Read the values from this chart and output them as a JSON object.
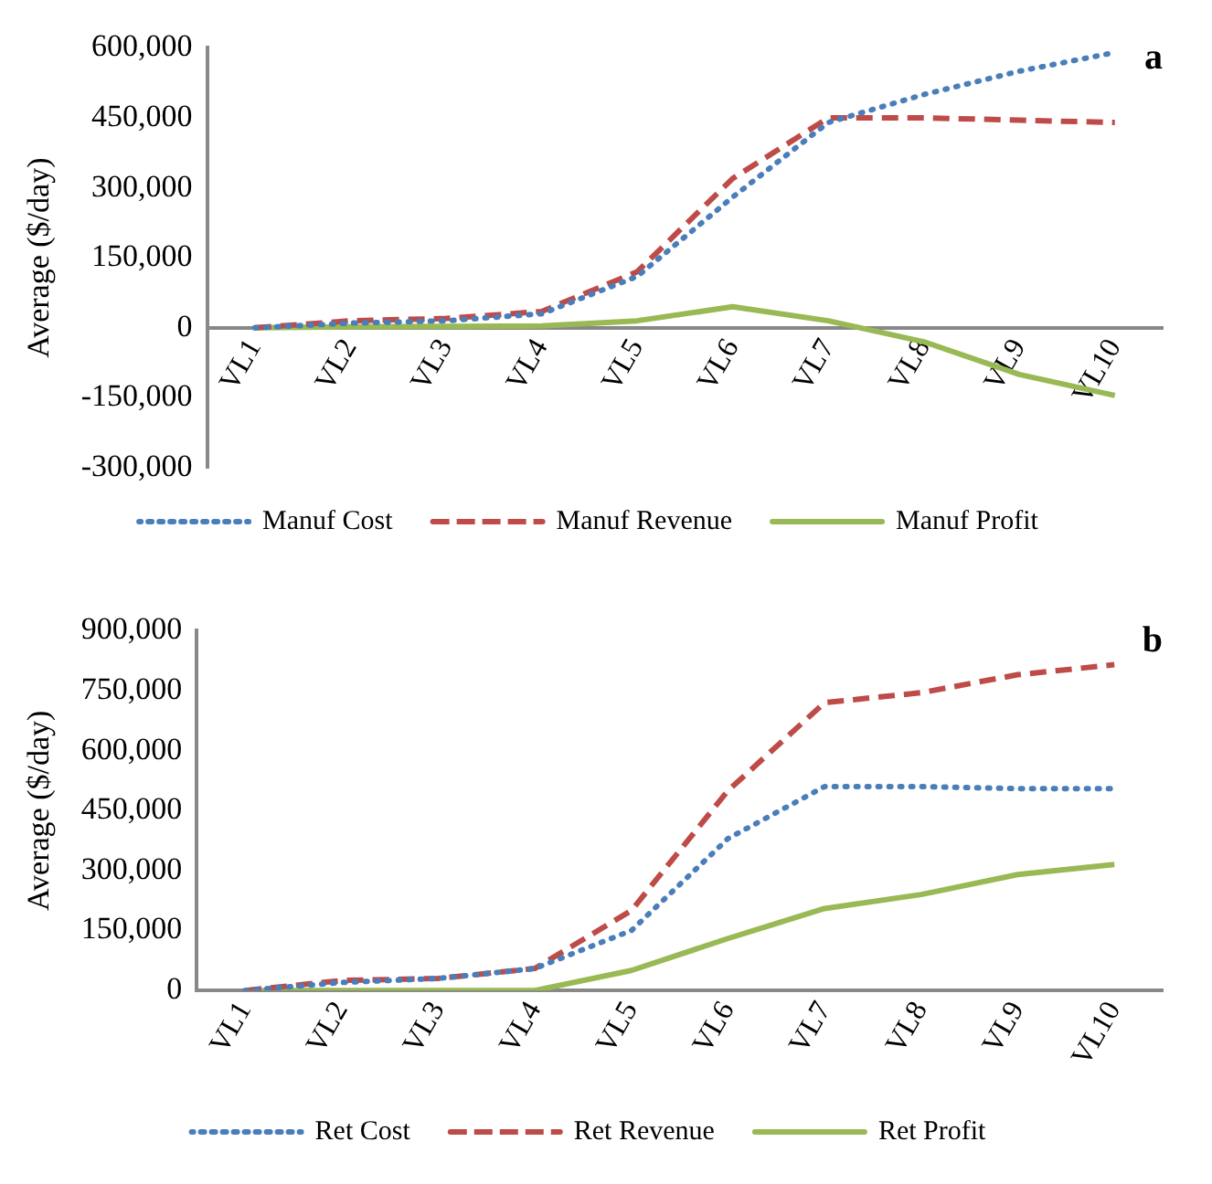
{
  "chart_data": [
    {
      "type": "line",
      "title": "a",
      "ylabel": "Average ($/day)",
      "categories": [
        "VL1",
        "VL2",
        "VL3",
        "VL4",
        "VL5",
        "VL6",
        "VL7",
        "VL8",
        "VL9",
        "VL10"
      ],
      "ylim": [
        -300000,
        600000
      ],
      "yticks": [
        {
          "value": -300000,
          "label": "-300,000"
        },
        {
          "value": -150000,
          "label": "-150,000"
        },
        0,
        {
          "value": 150000,
          "label": "150,000"
        },
        {
          "value": 300000,
          "label": "300,000"
        },
        {
          "value": 450000,
          "label": "450,000"
        },
        {
          "value": 600000,
          "label": "600,000"
        }
      ],
      "grid": false,
      "legend": "bottom",
      "marker": "none",
      "series": [
        {
          "name": "Manuf Cost",
          "color": "#4a7ebb",
          "line_style": "dotted",
          "values": [
            0,
            10000,
            15000,
            30000,
            110000,
            280000,
            440000,
            500000,
            550000,
            590000
          ]
        },
        {
          "name": "Manuf Revenue",
          "color": "#be4b48",
          "line_style": "dashed",
          "values": [
            0,
            15000,
            20000,
            35000,
            120000,
            320000,
            450000,
            450000,
            445000,
            440000
          ]
        },
        {
          "name": "Manuf Profit",
          "color": "#98b954",
          "line_style": "solid",
          "values": [
            0,
            2000,
            3000,
            4000,
            15000,
            45000,
            15000,
            -30000,
            -100000,
            -145000
          ]
        }
      ]
    },
    {
      "type": "line",
      "title": "b",
      "ylabel": "Average ($/day)",
      "categories": [
        "VL1",
        "VL2",
        "VL3",
        "VL4",
        "VL5",
        "VL6",
        "VL7",
        "VL8",
        "VL9",
        "VL10"
      ],
      "ylim": [
        0,
        900000
      ],
      "yticks": [
        0,
        {
          "value": 150000,
          "label": "150,000"
        },
        {
          "value": 300000,
          "label": "300,000"
        },
        {
          "value": 450000,
          "label": "450,000"
        },
        {
          "value": 600000,
          "label": "600,000"
        },
        {
          "value": 750000,
          "label": "750,000"
        },
        {
          "value": 900000,
          "label": "900,000"
        }
      ],
      "grid": false,
      "legend": "bottom",
      "marker": "none",
      "series": [
        {
          "name": "Ret Cost",
          "color": "#4a7ebb",
          "line_style": "dotted",
          "values": [
            0,
            20000,
            30000,
            55000,
            150000,
            380000,
            510000,
            510000,
            505000,
            505000
          ]
        },
        {
          "name": "Ret Revenue",
          "color": "#be4b48",
          "line_style": "dashed",
          "values": [
            0,
            25000,
            30000,
            55000,
            200000,
            500000,
            720000,
            745000,
            790000,
            815000
          ]
        },
        {
          "name": "Ret Profit",
          "color": "#98b954",
          "line_style": "solid",
          "values": [
            0,
            0,
            0,
            0,
            50000,
            130000,
            205000,
            240000,
            290000,
            315000
          ]
        }
      ]
    }
  ]
}
